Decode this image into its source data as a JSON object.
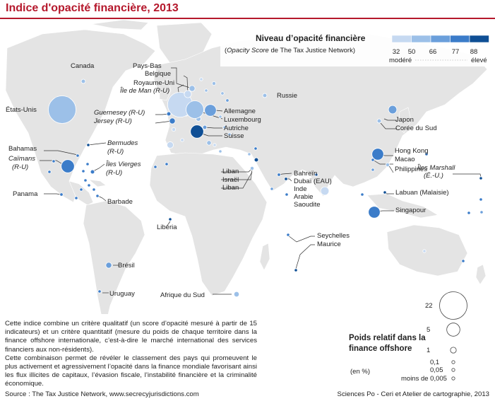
{
  "title": "Indice d'opacité financière, 2013",
  "legend_color": {
    "title": "Niveau d’opacité financière",
    "subtitle_italic": "Opacity Score",
    "subtitle_rest": " de The Tax Justice Network)",
    "breaks": [
      "32",
      "50",
      "66",
      "77",
      "88"
    ],
    "low_label": "modéré",
    "high_label": "élevé",
    "classes": [
      "#c6d9f1",
      "#9cc0e8",
      "#6b9fdb",
      "#3b7cc9",
      "#0f4f95"
    ]
  },
  "legend_size": {
    "title": "Poids relatif dans la finance offshore",
    "unit": "(en %)",
    "entries": [
      {
        "label": "22",
        "value": 22
      },
      {
        "label": "5",
        "value": 5
      },
      {
        "label": "1",
        "value": 1
      },
      {
        "label": "0,1",
        "value": 0.1
      },
      {
        "label": "0,05",
        "value": 0.05
      },
      {
        "label": "moins de 0,005",
        "value": 0.005
      }
    ]
  },
  "colors": {
    "land": "#e4e4e4",
    "sea": "#ffffff",
    "accent": "#b5182c",
    "leader": "#333333"
  },
  "description": [
    "Cette indice combine un critère qualitatif (un score d’opacité mesuré à partir de 15 indicateurs) et un critère quantitatif (mesure du poids de chaque territoire dans la finance offshore internationale, c’est-à-dire le marché international des services financiers aux non-résidents).",
    "Cette combinaison permet de révéler le classement des pays qui promeuvent le plus activement et agressivement l’opacité dans la finance mondiale favorisant ainsi les flux illicites de capitaux, l’évasion fiscale, l’instabilité financière et la criminalité économique."
  ],
  "source": "Source : The Tax Justice Network, www.secrecyjurisdictions.com",
  "credit": "Sciences Po - Ceri et Atelier de cartographie, 2013",
  "labels": [
    {
      "text": "Canada"
    },
    {
      "text": "États-Unis"
    },
    {
      "text": "Pays-Bas"
    },
    {
      "text": "Belgique"
    },
    {
      "text": "Royaume-Uni"
    },
    {
      "text": "Île de Man (R-U)",
      "italic": true
    },
    {
      "text": "Guernesey (R-U)",
      "italic": true
    },
    {
      "text": "Jersey (R-U)",
      "italic": true
    },
    {
      "text": "Allemagne"
    },
    {
      "text": "Luxembourg"
    },
    {
      "text": "Autriche"
    },
    {
      "text": "Suisse"
    },
    {
      "text": "Russie"
    },
    {
      "text": "Japon"
    },
    {
      "text": "Corée du Sud"
    },
    {
      "text": "Bahamas"
    },
    {
      "text": "Caïmans",
      "italic": true
    },
    {
      "text": "(R-U)",
      "italic": true
    },
    {
      "text": "Bermudes",
      "italic": true
    },
    {
      "text": "(R-U)",
      "italic": true
    },
    {
      "text": "Îles Vierges",
      "italic": true
    },
    {
      "text": "(R-U)",
      "italic": true
    },
    {
      "text": "Panama"
    },
    {
      "text": "Barbade"
    },
    {
      "text": "Liban"
    },
    {
      "text": "Israël"
    },
    {
      "text": "Liban"
    },
    {
      "text": "Bahreïn"
    },
    {
      "text": "Dubaï (EAU)"
    },
    {
      "text": "Inde"
    },
    {
      "text": "Arabie"
    },
    {
      "text": "Saoudite"
    },
    {
      "text": "Hong Kong"
    },
    {
      "text": "Macao"
    },
    {
      "text": "Philippines"
    },
    {
      "text": "Îles Marshall",
      "italic": true
    },
    {
      "text": "(É.-U.)",
      "italic": true
    },
    {
      "text": "Labuan (Malaisie)"
    },
    {
      "text": "Singapour"
    },
    {
      "text": "Liberia"
    },
    {
      "text": "Seychelles"
    },
    {
      "text": "Maurice"
    },
    {
      "text": "Brésil"
    },
    {
      "text": "Uruguay"
    },
    {
      "text": "Afrique du Sud"
    }
  ],
  "points": [
    {
      "name": "États-Unis",
      "weight": 22,
      "level": 2
    },
    {
      "name": "Canada",
      "weight": 0.5,
      "level": 2
    },
    {
      "name": "Bermudes",
      "weight": 0.1,
      "level": 5
    },
    {
      "name": "Bahamas",
      "weight": 0.1,
      "level": 4
    },
    {
      "name": "Caïmans",
      "weight": 5,
      "level": 4
    },
    {
      "name": "Îles Vierges",
      "weight": 0.5,
      "level": 4
    },
    {
      "name": "Panama",
      "weight": 0.3,
      "level": 4
    },
    {
      "name": "Barbade",
      "weight": 0.05,
      "level": 4
    },
    {
      "name": "Royaume-Uni",
      "weight": 18,
      "level": 1
    },
    {
      "name": "Pays-Bas",
      "weight": 1,
      "level": 2
    },
    {
      "name": "Belgique",
      "weight": 1.5,
      "level": 1
    },
    {
      "name": "Allemagne",
      "weight": 4,
      "level": 3
    },
    {
      "name": "Luxembourg",
      "weight": 9,
      "level": 2
    },
    {
      "name": "Suisse",
      "weight": 5,
      "level": 5
    },
    {
      "name": "Autriche",
      "weight": 0.5,
      "level": 3
    },
    {
      "name": "Guernesey",
      "weight": 0.5,
      "level": 4
    },
    {
      "name": "Jersey",
      "weight": 1,
      "level": 4
    },
    {
      "name": "Russie",
      "weight": 0.5,
      "level": 2
    },
    {
      "name": "Japon",
      "weight": 2,
      "level": 3
    },
    {
      "name": "Corée du Sud",
      "weight": 0.5,
      "level": 2
    },
    {
      "name": "Hong Kong",
      "weight": 4,
      "level": 4
    },
    {
      "name": "Macao",
      "weight": 0.05,
      "level": 4
    },
    {
      "name": "Singapour",
      "weight": 4,
      "level": 4
    },
    {
      "name": "Inde",
      "weight": 2,
      "level": 1
    },
    {
      "name": "Bahreïn",
      "weight": 0.3,
      "level": 4
    },
    {
      "name": "Dubaï (EAU)",
      "weight": 0.3,
      "level": 5
    },
    {
      "name": "Arabie Saoudite",
      "weight": 0.1,
      "level": 3
    },
    {
      "name": "Liban",
      "weight": 0.5,
      "level": 5
    },
    {
      "name": "Israël",
      "weight": 0.4,
      "level": 2
    },
    {
      "name": "Brésil",
      "weight": 1,
      "level": 3
    },
    {
      "name": "Uruguay",
      "weight": 0.05,
      "level": 4
    },
    {
      "name": "Afrique du Sud",
      "weight": 0.8,
      "level": 2
    },
    {
      "name": "Liberia",
      "weight": 0.05,
      "level": 5
    },
    {
      "name": "Seychelles",
      "weight": 0.05,
      "level": 4
    },
    {
      "name": "Maurice",
      "weight": 0.05,
      "level": 5
    },
    {
      "name": "Philippines",
      "weight": 0.4,
      "level": 2
    },
    {
      "name": "Labuan (Malaisie)",
      "weight": 0.1,
      "level": 5
    },
    {
      "name": "Îles Marshall",
      "weight": 0.05,
      "level": 5
    }
  ]
}
